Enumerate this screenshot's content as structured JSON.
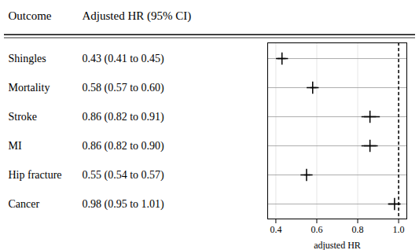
{
  "chart_data": {
    "type": "forest",
    "categories": [
      "Shingles",
      "Mortality",
      "Stroke",
      "MI",
      "Hip fracture",
      "Cancer"
    ],
    "values": [
      0.43,
      0.58,
      0.86,
      0.86,
      0.55,
      0.98
    ],
    "ci_low": [
      0.41,
      0.57,
      0.82,
      0.82,
      0.54,
      0.95
    ],
    "ci_high": [
      0.45,
      0.6,
      0.91,
      0.9,
      0.57,
      1.01
    ],
    "value_labels": [
      "0.43 (0.41 to 0.45)",
      "0.58 (0.57 to 0.60)",
      "0.86 (0.82 to 0.91)",
      "0.86 (0.82 to 0.90)",
      "0.55 (0.54 to 0.57)",
      "0.98 (0.95 to 1.01)"
    ],
    "column_headers": [
      "Outcome",
      "Adjusted HR (95% CI)"
    ],
    "x_label": "adjusted HR",
    "xlim": [
      0.36,
      1.04
    ],
    "xticks": [
      0.4,
      0.6,
      0.8,
      {
        "value": 1.0,
        "label": "1.0"
      }
    ],
    "reference_x": 1.0,
    "grid": true,
    "tick_labels": "x",
    "marker": "plus",
    "color": "black"
  }
}
